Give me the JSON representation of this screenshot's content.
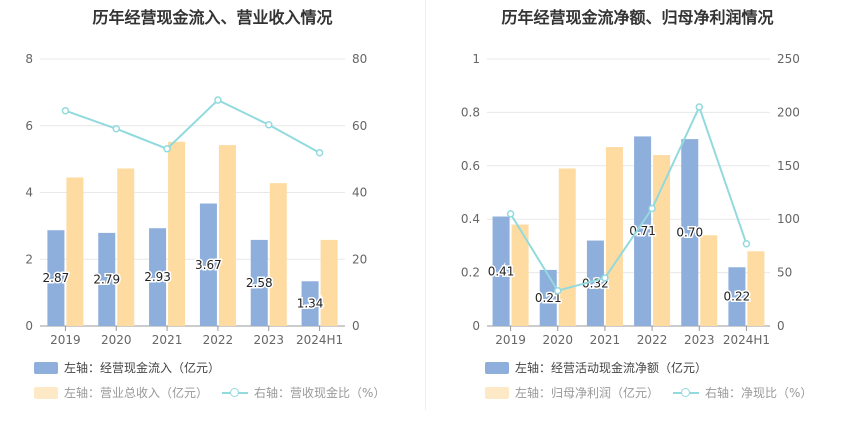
{
  "colors": {
    "bar_primary": "#8eaedc",
    "bar_secondary": "#fedba1",
    "line": "#92dade",
    "grid": "#e8e8e8",
    "axis_text": "#666666"
  },
  "charts": [
    {
      "title": "历年经营现金流入、营业收入情况",
      "chart_data": {
        "type": "bar",
        "categories": [
          "2019",
          "2020",
          "2021",
          "2022",
          "2023",
          "2024H1"
        ],
        "left_axis": {
          "ticks": [
            "0",
            "2",
            "4",
            "6",
            "8"
          ],
          "range": [
            0,
            8
          ]
        },
        "right_axis": {
          "ticks": [
            "0",
            "20",
            "40",
            "60",
            "80"
          ],
          "range": [
            0,
            80
          ]
        },
        "series": [
          {
            "name": "左轴：经营现金流入（亿元）",
            "axis": "left",
            "kind": "bar",
            "values": [
              2.87,
              2.79,
              2.93,
              3.67,
              2.58,
              1.34
            ],
            "labels": [
              "2.87",
              "2.79",
              "2.93",
              "3.67",
              "2.58",
              "1.34"
            ]
          },
          {
            "name": "左轴：营业总收入（亿元）",
            "axis": "left",
            "kind": "bar",
            "values": [
              4.45,
              4.72,
              5.52,
              5.42,
              4.28,
              2.58
            ]
          },
          {
            "name": "右轴：营收现金比（%）",
            "axis": "right",
            "kind": "line",
            "values": [
              64.5,
              59.1,
              53.1,
              67.7,
              60.3,
              51.9
            ]
          }
        ]
      }
    },
    {
      "title": "历年经营现金流净额、归母净利润情况",
      "chart_data": {
        "type": "bar",
        "categories": [
          "2019",
          "2020",
          "2021",
          "2022",
          "2023",
          "2024H1"
        ],
        "left_axis": {
          "ticks": [
            "0",
            "0.2",
            "0.4",
            "0.6",
            "0.8",
            "1"
          ],
          "range": [
            0,
            1
          ]
        },
        "right_axis": {
          "ticks": [
            "0",
            "50",
            "100",
            "150",
            "200",
            "250"
          ],
          "range": [
            0,
            250
          ]
        },
        "series": [
          {
            "name": "左轴：经营活动现金流净额（亿元）",
            "axis": "left",
            "kind": "bar",
            "values": [
              0.41,
              0.21,
              0.32,
              0.71,
              0.7,
              0.22
            ],
            "labels": [
              "0.41",
              "0.21",
              "0.32",
              "0.71",
              "0.70",
              "0.22"
            ]
          },
          {
            "name": "左轴：归母净利润（亿元）",
            "axis": "left",
            "kind": "bar",
            "values": [
              0.38,
              0.59,
              0.67,
              0.64,
              0.34,
              0.28
            ]
          },
          {
            "name": "右轴：净现比（%）",
            "axis": "right",
            "kind": "line",
            "values": [
              105,
              33,
              45,
              110,
              205,
              77
            ]
          }
        ]
      }
    }
  ]
}
